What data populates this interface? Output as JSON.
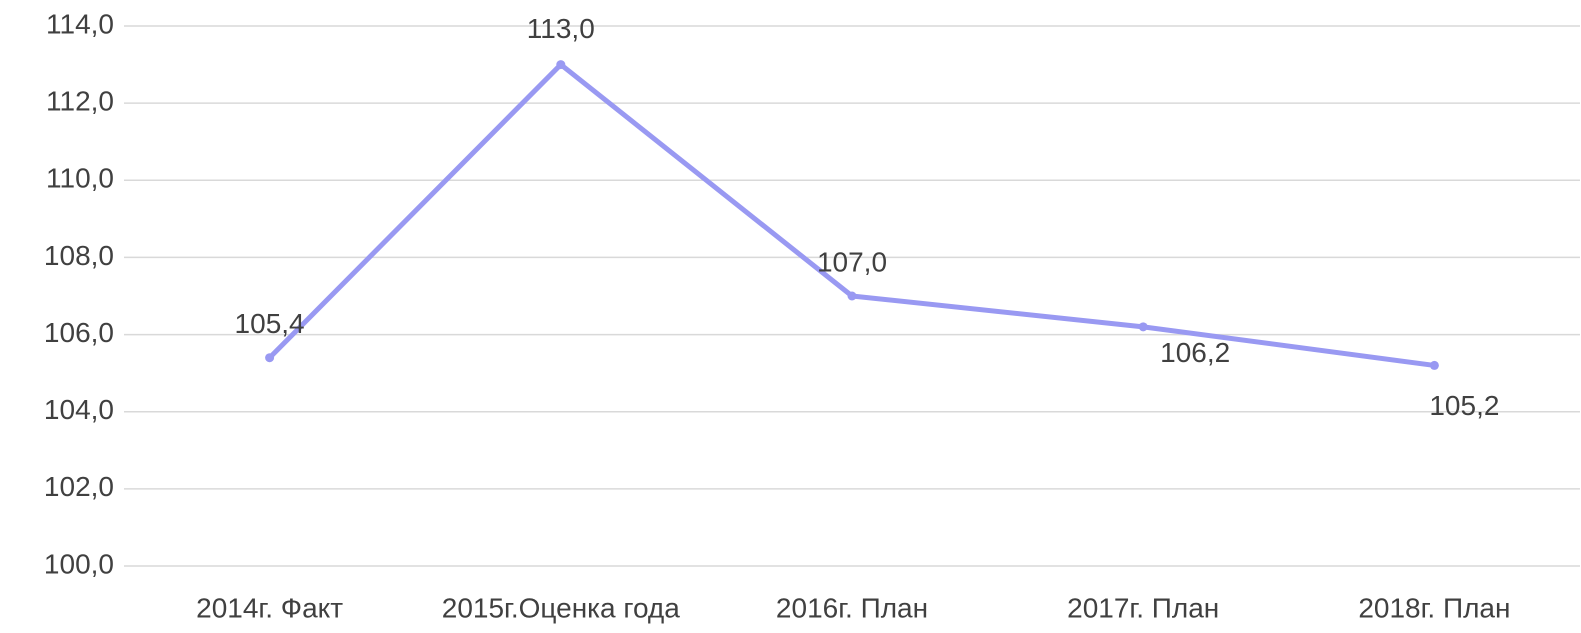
{
  "chart_data": {
    "type": "line",
    "categories": [
      "2014г. Факт",
      "2015г.Оценка года",
      "2016г. План",
      "2017г. План",
      "2018г. План"
    ],
    "series": [
      {
        "color": "#9999f2",
        "values": [
          105.4,
          113.0,
          107.0,
          106.2,
          105.2
        ],
        "value_labels": [
          "105,4",
          "113,0",
          "107,0",
          "106,2",
          "105,2"
        ]
      }
    ],
    "ylim": [
      100,
      114
    ],
    "yticks": [
      {
        "value": 100,
        "label": "100,0"
      },
      {
        "value": 102,
        "label": "102,0"
      },
      {
        "value": 104,
        "label": "104,0"
      },
      {
        "value": 106,
        "label": "106,0"
      },
      {
        "value": 108,
        "label": "108,0"
      },
      {
        "value": 110,
        "label": "110,0"
      },
      {
        "value": 112,
        "label": "112,0"
      },
      {
        "value": 114,
        "label": "114,0"
      }
    ],
    "grid": true
  }
}
